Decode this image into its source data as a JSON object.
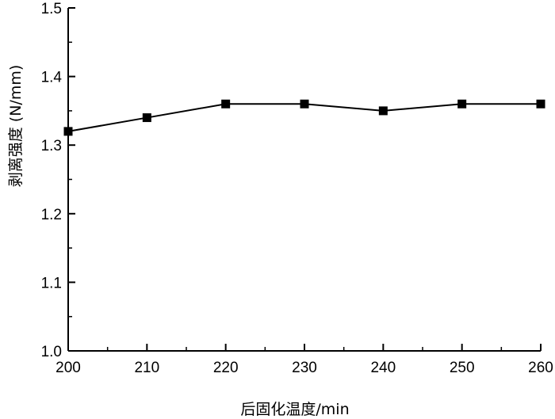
{
  "chart_data": {
    "type": "line",
    "title": "",
    "xlabel": "后固化温度/min",
    "ylabel": "剥离强度 (N/mm)",
    "xlim": [
      200,
      260
    ],
    "ylim": [
      1.0,
      1.5
    ],
    "x_ticks": [
      200,
      210,
      220,
      230,
      240,
      250,
      260
    ],
    "x_tick_labels": [
      "200",
      "210",
      "220",
      "230",
      "240",
      "250",
      "260"
    ],
    "y_ticks": [
      1.0,
      1.1,
      1.2,
      1.3,
      1.4,
      1.5
    ],
    "y_tick_labels": [
      "1.0",
      "1.1",
      "1.2",
      "1.3",
      "1.4",
      "1.5"
    ],
    "grid": false,
    "legend": "none",
    "marker": "square",
    "series": [
      {
        "x": [
          200,
          210,
          220,
          230,
          240,
          250,
          260
        ],
        "values": [
          1.32,
          1.34,
          1.36,
          1.36,
          1.35,
          1.36,
          1.36
        ]
      }
    ]
  }
}
